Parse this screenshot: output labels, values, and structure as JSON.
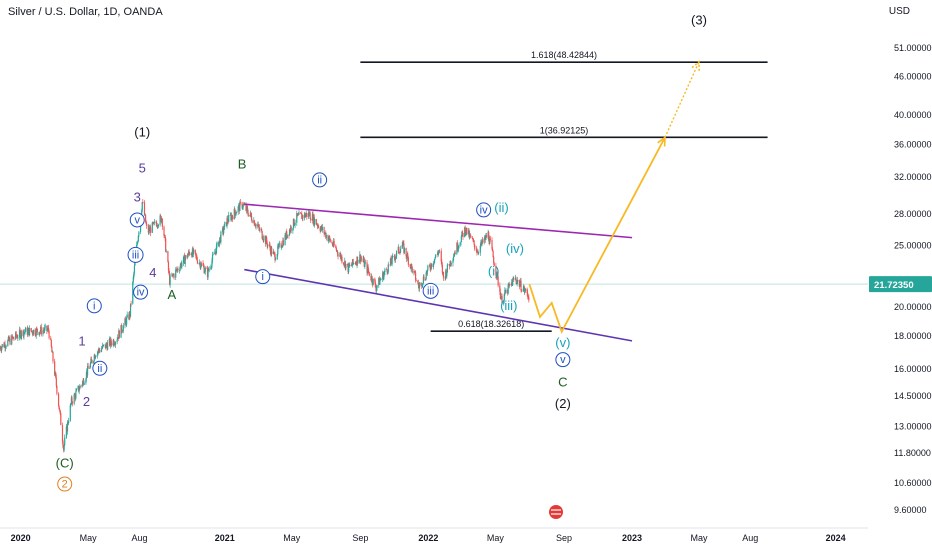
{
  "header": {
    "title": "Silver / U.S. Dollar, 1D, OANDA",
    "currency": "USD"
  },
  "chart_data": {
    "type": "candlestick",
    "y_scale": "log",
    "ylim": [
      9.2,
      56
    ],
    "price_ticks": [
      "51.00000",
      "46.00000",
      "40.00000",
      "36.00000",
      "32.00000",
      "28.00000",
      "25.00000",
      "21.72350",
      "20.00000",
      "18.00000",
      "16.00000",
      "14.50000",
      "13.00000",
      "11.80000",
      "10.60000",
      "9.60000"
    ],
    "price_tick_values": [
      51,
      46,
      40,
      36,
      32,
      28,
      25,
      21.7235,
      20,
      18,
      16,
      14.5,
      13,
      11.8,
      10.6,
      9.6
    ],
    "last_price": 21.7235,
    "last_price_label": "21.72350",
    "date_ticks": [
      "2020",
      "May",
      "Aug",
      "2021",
      "May",
      "Sep",
      "2022",
      "May",
      "Sep",
      "2023",
      "May",
      "Aug",
      "2024"
    ],
    "date_tick_values": [
      "2020-01-01",
      "2020-05-01",
      "2020-08-01",
      "2021-01-01",
      "2021-05-01",
      "2021-09-01",
      "2022-01-01",
      "2022-05-01",
      "2022-09-01",
      "2023-01-01",
      "2023-05-01",
      "2023-08-01",
      "2024-01-01"
    ],
    "price_path": [
      [
        "2019-11-25",
        17.3
      ],
      [
        "2020-01-06",
        18.3
      ],
      [
        "2020-02-20",
        18.4
      ],
      [
        "2020-03-18",
        12.0
      ],
      [
        "2020-04-01",
        14.2
      ],
      [
        "2020-04-22",
        15.3
      ],
      [
        "2020-05-15",
        17.0
      ],
      [
        "2020-06-20",
        17.8
      ],
      [
        "2020-07-15",
        19.5
      ],
      [
        "2020-08-06",
        29.2
      ],
      [
        "2020-08-15",
        26.2
      ],
      [
        "2020-09-10",
        27.6
      ],
      [
        "2020-09-24",
        22.0
      ],
      [
        "2020-11-01",
        24.5
      ],
      [
        "2020-12-01",
        22.6
      ],
      [
        "2021-01-05",
        27.3
      ],
      [
        "2021-02-01",
        29.0
      ],
      [
        "2021-02-20",
        27.5
      ],
      [
        "2021-03-31",
        24.0
      ],
      [
        "2021-05-10",
        27.6
      ],
      [
        "2021-06-01",
        28.0
      ],
      [
        "2021-07-01",
        26.0
      ],
      [
        "2021-08-10",
        23.0
      ],
      [
        "2021-09-01",
        24.0
      ],
      [
        "2021-09-29",
        21.5
      ],
      [
        "2021-11-15",
        25.0
      ],
      [
        "2021-12-15",
        21.5
      ],
      [
        "2022-01-20",
        24.5
      ],
      [
        "2022-01-28",
        22.2
      ],
      [
        "2022-03-08",
        26.5
      ],
      [
        "2022-03-30",
        24.5
      ],
      [
        "2022-04-18",
        26.0
      ],
      [
        "2022-05-12",
        20.5
      ],
      [
        "2022-06-05",
        22.2
      ],
      [
        "2022-06-30",
        20.8
      ],
      [
        "2022-07-01",
        21.72
      ]
    ],
    "annotations": {
      "fib_levels": [
        {
          "label": "1.618(48.42844)",
          "price": 48.42844,
          "x_from": "2021-09-01",
          "x_to": "2023-09-01"
        },
        {
          "label": "1(36.92125)",
          "price": 36.92125,
          "x_from": "2021-09-01",
          "x_to": "2023-09-01"
        },
        {
          "label": "0.618(18.32618)",
          "price": 18.32618,
          "x_from": "2022-01-05",
          "x_to": "2022-08-10"
        }
      ],
      "channel_upper": {
        "from": [
          "2021-02-05",
          29.0
        ],
        "to": [
          "2023-01-01",
          25.7
        ]
      },
      "channel_lower": {
        "from": [
          "2021-02-05",
          22.9
        ],
        "to": [
          "2023-01-01",
          17.7
        ]
      },
      "projection": [
        [
          "2022-07-01",
          21.72
        ],
        [
          "2022-07-20",
          19.3
        ],
        [
          "2022-08-10",
          20.3
        ],
        [
          "2022-08-28",
          18.3
        ],
        [
          "2023-03-01",
          36.9
        ]
      ],
      "projection_dotted": [
        [
          "2023-03-01",
          36.9
        ],
        [
          "2023-05-01",
          48.5
        ]
      ],
      "wave_labels": [
        {
          "text": "(1)",
          "x": "2020-08-06",
          "y": 37.0,
          "color": "#131722",
          "style": "plain"
        },
        {
          "text": "5",
          "x": "2020-08-06",
          "y": 32.5,
          "color": "#5b3d9c",
          "style": "plain"
        },
        {
          "text": "3",
          "x": "2020-07-28",
          "y": 29.3,
          "color": "#5b3d9c",
          "style": "plain"
        },
        {
          "text": "v",
          "x": "2020-07-28",
          "y": 27.0,
          "color": "#1e4fc2",
          "style": "circle"
        },
        {
          "text": "iii",
          "x": "2020-07-25",
          "y": 23.8,
          "color": "#1e4fc2",
          "style": "circle"
        },
        {
          "text": "4",
          "x": "2020-08-25",
          "y": 22.3,
          "color": "#5b3d9c",
          "style": "plain"
        },
        {
          "text": "iv",
          "x": "2020-08-03",
          "y": 20.8,
          "color": "#1e4fc2",
          "style": "circle"
        },
        {
          "text": "i",
          "x": "2020-05-12",
          "y": 19.8,
          "color": "#1e4fc2",
          "style": "circle"
        },
        {
          "text": "1",
          "x": "2020-04-20",
          "y": 17.4,
          "color": "#5b3d9c",
          "style": "plain"
        },
        {
          "text": "ii",
          "x": "2020-05-22",
          "y": 15.8,
          "color": "#1e4fc2",
          "style": "circle"
        },
        {
          "text": "2",
          "x": "2020-04-28",
          "y": 14.0,
          "color": "#5b3d9c",
          "style": "plain"
        },
        {
          "text": "(C)",
          "x": "2020-03-20",
          "y": 11.2,
          "color": "#1b5e20",
          "style": "plain"
        },
        {
          "text": "2",
          "x": "2020-03-20",
          "y": 10.4,
          "color": "#e08020",
          "style": "circle"
        },
        {
          "text": "A",
          "x": "2020-09-28",
          "y": 20.6,
          "color": "#1b5e20",
          "style": "plain"
        },
        {
          "text": "B",
          "x": "2021-02-01",
          "y": 33.0,
          "color": "#1b5e20",
          "style": "plain"
        },
        {
          "text": "ii",
          "x": "2021-06-20",
          "y": 31.2,
          "color": "#1e4fc2",
          "style": "circle"
        },
        {
          "text": "i",
          "x": "2021-03-10",
          "y": 22.0,
          "color": "#1e4fc2",
          "style": "circle"
        },
        {
          "text": "iii",
          "x": "2022-01-05",
          "y": 20.9,
          "color": "#1e4fc2",
          "style": "circle"
        },
        {
          "text": "iv",
          "x": "2022-04-10",
          "y": 28.0,
          "color": "#1e4fc2",
          "style": "circle"
        },
        {
          "text": "(ii)",
          "x": "2022-05-12",
          "y": 28.2,
          "color": "#17a2b8",
          "style": "plain"
        },
        {
          "text": "(iv)",
          "x": "2022-06-05",
          "y": 24.3,
          "color": "#17a2b8",
          "style": "plain"
        },
        {
          "text": "(i)",
          "x": "2022-04-28",
          "y": 22.4,
          "color": "#17a2b8",
          "style": "plain"
        },
        {
          "text": "(iii)",
          "x": "2022-05-25",
          "y": 19.8,
          "color": "#17a2b8",
          "style": "plain"
        },
        {
          "text": "(v)",
          "x": "2022-08-30",
          "y": 17.3,
          "color": "#17a2b8",
          "style": "plain"
        },
        {
          "text": "v",
          "x": "2022-08-30",
          "y": 16.3,
          "color": "#1e4fc2",
          "style": "circle"
        },
        {
          "text": "C",
          "x": "2022-08-30",
          "y": 15.0,
          "color": "#1b5e20",
          "style": "plain"
        },
        {
          "text": "(2)",
          "x": "2022-08-30",
          "y": 13.9,
          "color": "#131722",
          "style": "plain"
        },
        {
          "text": "(3)",
          "x": "2023-05-01",
          "y": 55.5,
          "color": "#131722",
          "style": "plain"
        }
      ]
    },
    "colors": {
      "up": "#26a69a",
      "down": "#ef5350",
      "channel_upper": "#9c27b0",
      "channel_lower": "#5e35b1",
      "projection": "#f7b924",
      "last_price": "#26a69a",
      "price_line": "#bfe3e0"
    }
  }
}
